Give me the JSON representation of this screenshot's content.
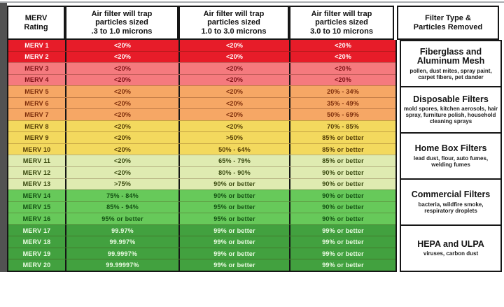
{
  "chart_data": {
    "type": "table",
    "title": "MERV Rating air filter efficiency and filter type table",
    "columns": [
      "MERV Rating",
      "Air filter will trap particles sized .3 to 1.0 microns",
      "Air filter will trap particles sized 1.0 to 3.0 microns",
      "Air filter will trap particles sized 3.0 to 10 microns",
      "Filter Type & Particles Removed"
    ],
    "header_lines": [
      [
        "MERV",
        "Rating"
      ],
      [
        "Air filter will trap",
        "particles sized",
        ".3 to 1.0 microns"
      ],
      [
        "Air filter will trap",
        "particles sized",
        "1.0 to 3.0 microns"
      ],
      [
        "Air filter will trap",
        "particles sized",
        "3.0 to 10 microns"
      ],
      [
        "Filter Type &",
        "Particles Removed"
      ]
    ],
    "rows": [
      {
        "label": "MERV 1",
        "values": [
          "<20%",
          "<20%",
          "<20%"
        ],
        "style": 0
      },
      {
        "label": "MERV 2",
        "values": [
          "<20%",
          "<20%",
          "<20%"
        ],
        "style": 0
      },
      {
        "label": "MERV 3",
        "values": [
          "<20%",
          "<20%",
          "<20%"
        ],
        "style": 1
      },
      {
        "label": "MERV 4",
        "values": [
          "<20%",
          "<20%",
          "<20%"
        ],
        "style": 1
      },
      {
        "label": "MERV 5",
        "values": [
          "<20%",
          "<20%",
          "20% - 34%"
        ],
        "style": 2
      },
      {
        "label": "MERV 6",
        "values": [
          "<20%",
          "<20%",
          "35% - 49%"
        ],
        "style": 2
      },
      {
        "label": "MERV 7",
        "values": [
          "<20%",
          "<20%",
          "50% - 69%"
        ],
        "style": 2
      },
      {
        "label": "MERV 8",
        "values": [
          "<20%",
          "<20%",
          "70% - 85%"
        ],
        "style": 3
      },
      {
        "label": "MERV 9",
        "values": [
          "<20%",
          ">50%",
          "85% or better"
        ],
        "style": 3
      },
      {
        "label": "MERV 10",
        "values": [
          "<20%",
          "50% - 64%",
          "85% or better"
        ],
        "style": 3
      },
      {
        "label": "MERV 11",
        "values": [
          "<20%",
          "65% - 79%",
          "85% or better"
        ],
        "style": 4
      },
      {
        "label": "MERV 12",
        "values": [
          "<20%",
          "80% - 90%",
          "90% or better"
        ],
        "style": 4
      },
      {
        "label": "MERV 13",
        "values": [
          ">75%",
          "90% or better",
          "90% or better"
        ],
        "style": 4
      },
      {
        "label": "MERV 14",
        "values": [
          "75% - 84%",
          "90% or better",
          "90% or better"
        ],
        "style": 5
      },
      {
        "label": "MERV 15",
        "values": [
          "85% - 94%",
          "95% or better",
          "90% or better"
        ],
        "style": 5
      },
      {
        "label": "MERV 16",
        "values": [
          "95% or better",
          "95% or better",
          "90% or better"
        ],
        "style": 5
      },
      {
        "label": "MERV 17",
        "values": [
          "99.97%",
          "99% or better",
          "99% or better"
        ],
        "style": 6
      },
      {
        "label": "MERV 18",
        "values": [
          "99.997%",
          "99% or better",
          "99% or better"
        ],
        "style": 6
      },
      {
        "label": "MERV 19",
        "values": [
          "99.9997%",
          "99% or better",
          "99% or better"
        ],
        "style": 6
      },
      {
        "label": "MERV 20",
        "values": [
          "99.99997%",
          "99% or better",
          "99% or better"
        ],
        "style": 6
      }
    ],
    "row_styles": [
      {
        "bg": "#e71c29",
        "text": "#ffffff"
      },
      {
        "bg": "#f57a7e",
        "text": "#7d1215"
      },
      {
        "bg": "#f6a765",
        "text": "#7c2c0a"
      },
      {
        "bg": "#f3d95e",
        "text": "#533c04"
      },
      {
        "bg": "#dfebb1",
        "text": "#3a4a10"
      },
      {
        "bg": "#67c95a",
        "text": "#135213"
      },
      {
        "bg": "#42a13f",
        "text": "#e9fbe1"
      }
    ],
    "filter_groups": [
      {
        "title": "Fiberglass and Aluminum Mesh",
        "particles": "pollen, dust mites, spray paint, carpet fibers, pet dander"
      },
      {
        "title": "Disposable Filters",
        "particles": "mold spores, kitchen aerosols, hair spray, furniture polish, household cleaning sprays"
      },
      {
        "title": "Home Box Filters",
        "particles": "lead dust, flour, auto fumes, welding fumes"
      },
      {
        "title": "Commercial Filters",
        "particles": "bacteria, wildfire smoke, respiratory droplets"
      },
      {
        "title": "HEPA and ULPA",
        "particles": "viruses, carbon dust"
      }
    ],
    "layout": {
      "legend_position": "none",
      "grid": "on",
      "rows_per_filter_group": 4
    }
  }
}
